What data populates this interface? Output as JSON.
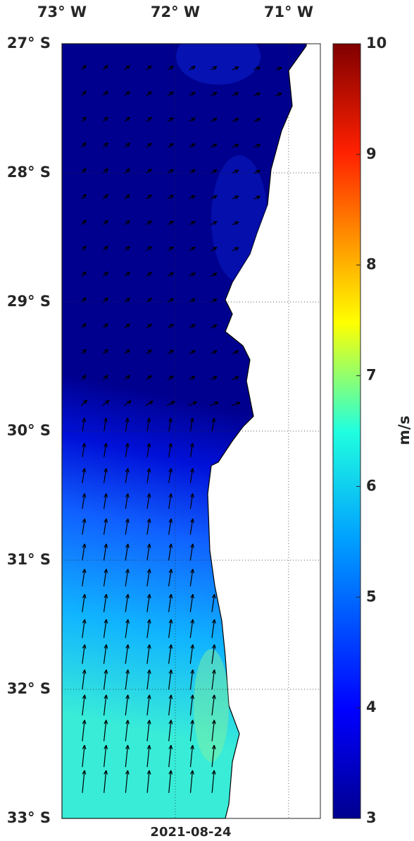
{
  "map": {
    "lon_range": [
      -73,
      -70.72
    ],
    "lat_range": [
      -33,
      -27
    ],
    "lon_ticks": [
      {
        "value": -73,
        "label": "73° W"
      },
      {
        "value": -72,
        "label": "72° W"
      },
      {
        "value": -71,
        "label": "71° W"
      }
    ],
    "lat_ticks": [
      {
        "value": -27,
        "label": "27° S"
      },
      {
        "value": -28,
        "label": "28° S"
      },
      {
        "value": -29,
        "label": "29° S"
      },
      {
        "value": -30,
        "label": "30° S"
      },
      {
        "value": -31,
        "label": "31° S"
      },
      {
        "value": -32,
        "label": "32° S"
      },
      {
        "value": -33,
        "label": "33° S"
      }
    ],
    "colorbar": {
      "lim": [
        3,
        10
      ],
      "ticks": [
        3,
        4,
        5,
        6,
        7,
        8,
        9,
        10
      ],
      "label": "m/s"
    },
    "date": "2021-08-24"
  }
}
